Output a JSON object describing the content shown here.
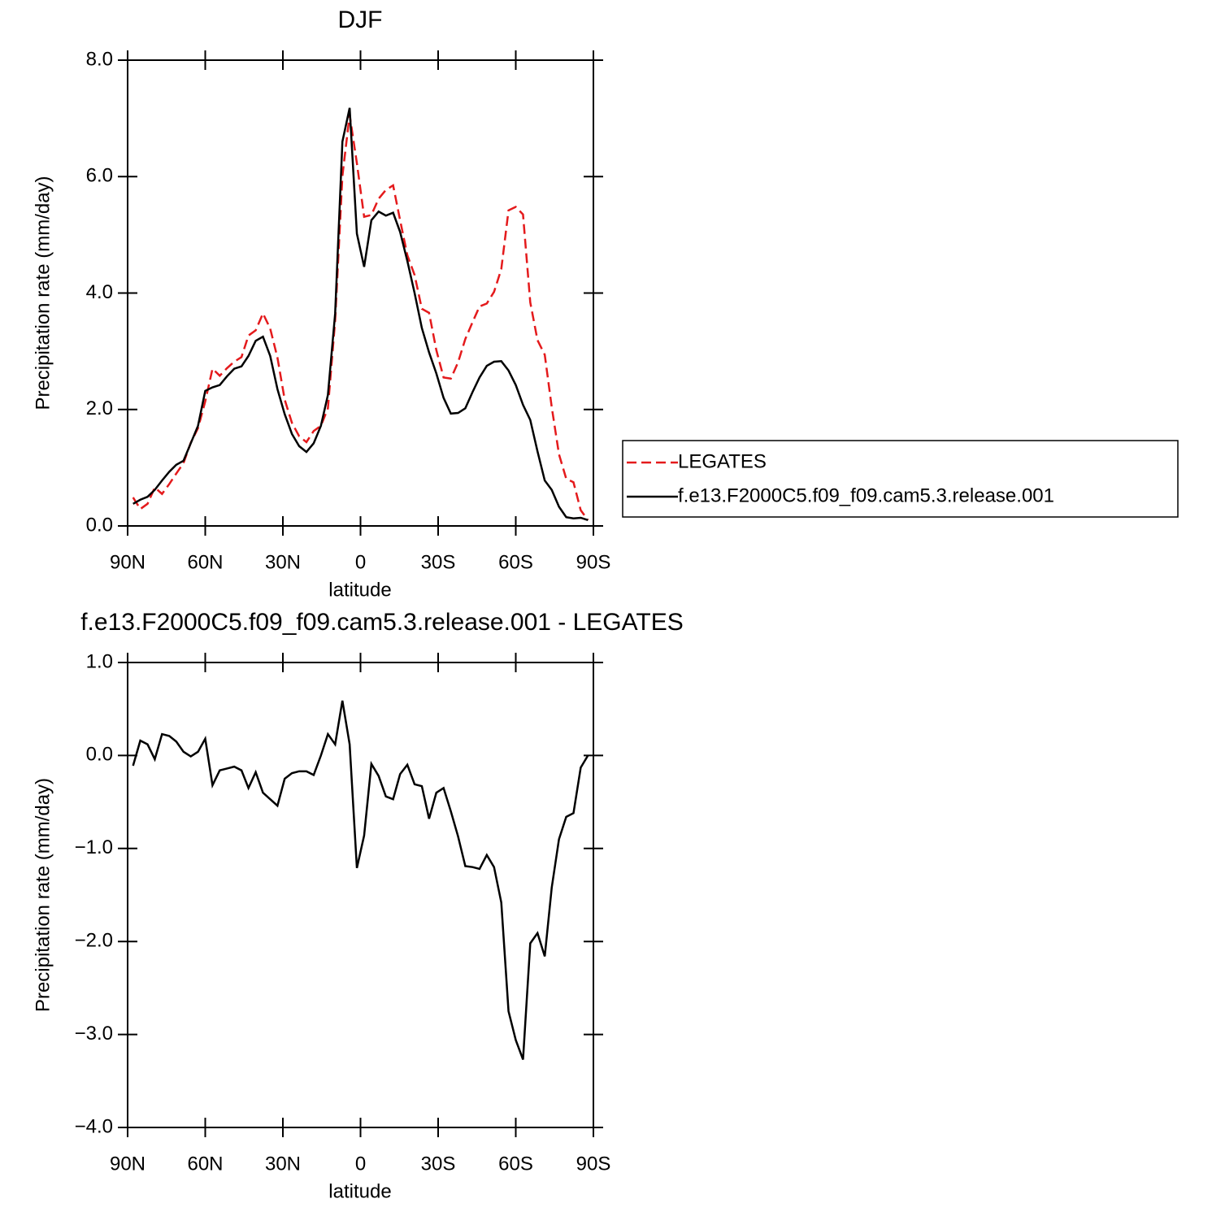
{
  "chart_data": [
    {
      "type": "line",
      "title": "DJF",
      "xlabel": "latitude",
      "ylabel": "Precipitation rate (mm/day)",
      "x": [
        87.9,
        85.1,
        82.3,
        79.5,
        76.7,
        73.9,
        71.2,
        68.4,
        65.6,
        62.8,
        60.0,
        57.2,
        54.4,
        51.6,
        48.8,
        46.0,
        43.3,
        40.5,
        37.7,
        34.9,
        32.1,
        29.3,
        26.5,
        23.7,
        20.9,
        18.1,
        15.3,
        12.6,
        9.8,
        7.0,
        4.2,
        1.4,
        -1.4,
        -4.2,
        -7.0,
        -9.8,
        -12.6,
        -15.3,
        -18.1,
        -20.9,
        -23.7,
        -26.5,
        -29.3,
        -32.1,
        -34.9,
        -37.7,
        -40.5,
        -43.3,
        -46.0,
        -48.8,
        -51.6,
        -54.4,
        -57.2,
        -60.0,
        -62.8,
        -65.6,
        -68.4,
        -71.2,
        -73.9,
        -76.7,
        -79.5,
        -82.3,
        -85.1,
        -87.9
      ],
      "series": [
        {
          "name": "LEGATES",
          "color": "#e41a1c",
          "line_style": "dashed",
          "values": [
            0.49,
            0.29,
            0.38,
            0.66,
            0.55,
            0.72,
            0.9,
            1.08,
            1.43,
            1.68,
            2.14,
            2.7,
            2.58,
            2.71,
            2.82,
            2.9,
            3.27,
            3.36,
            3.65,
            3.39,
            2.89,
            2.17,
            1.77,
            1.54,
            1.44,
            1.63,
            1.72,
            2.02,
            3.53,
            6.01,
            7.06,
            6.23,
            5.31,
            5.34,
            5.62,
            5.77,
            5.85,
            5.25,
            4.65,
            4.31,
            3.73,
            3.66,
            3.02,
            2.55,
            2.53,
            2.81,
            3.21,
            3.5,
            3.77,
            3.82,
            4.02,
            4.41,
            5.42,
            5.48,
            5.35,
            3.84,
            3.19,
            2.94,
            2.04,
            1.23,
            0.81,
            0.75,
            0.27,
            0.1
          ]
        },
        {
          "name": "f.e13.F2000C5.f09_f09.cam5.3.release.001",
          "color": "#000000",
          "line_style": "solid",
          "values": [
            0.38,
            0.45,
            0.5,
            0.62,
            0.78,
            0.93,
            1.05,
            1.12,
            1.42,
            1.72,
            2.32,
            2.38,
            2.42,
            2.57,
            2.7,
            2.74,
            2.92,
            3.18,
            3.25,
            2.92,
            2.35,
            1.92,
            1.58,
            1.37,
            1.27,
            1.42,
            1.72,
            2.25,
            3.65,
            6.6,
            7.18,
            5.02,
            4.45,
            5.25,
            5.4,
            5.33,
            5.38,
            5.05,
            4.55,
            4.0,
            3.4,
            2.98,
            2.62,
            2.2,
            1.93,
            1.94,
            2.02,
            2.3,
            2.55,
            2.75,
            2.82,
            2.83,
            2.67,
            2.42,
            2.08,
            1.82,
            1.28,
            0.78,
            0.62,
            0.33,
            0.15,
            0.13,
            0.14,
            0.1
          ]
        }
      ],
      "xlim": [
        90,
        -90
      ],
      "xticks": [
        {
          "value": 90,
          "label": "90N"
        },
        {
          "value": 60,
          "label": "60N"
        },
        {
          "value": 30,
          "label": "30N"
        },
        0,
        {
          "value": -30,
          "label": "30S"
        },
        {
          "value": -60,
          "label": "60S"
        },
        {
          "value": -90,
          "label": "90S"
        }
      ],
      "ylim": [
        0,
        8
      ],
      "yticks": [
        {
          "value": 0,
          "label": "0.0"
        },
        {
          "value": 2,
          "label": "2.0"
        },
        {
          "value": 4,
          "label": "4.0"
        },
        {
          "value": 6,
          "label": "6.0"
        },
        {
          "value": 8,
          "label": "8.0"
        }
      ],
      "legend": "right"
    },
    {
      "type": "line",
      "title": "f.e13.F2000C5.f09_f09.cam5.3.release.001 - LEGATES",
      "xlabel": "latitude",
      "ylabel": "Precipitation rate (mm/day)",
      "x": [
        87.9,
        85.1,
        82.3,
        79.5,
        76.7,
        73.9,
        71.2,
        68.4,
        65.6,
        62.8,
        60.0,
        57.2,
        54.4,
        51.6,
        48.8,
        46.0,
        43.3,
        40.5,
        37.7,
        34.9,
        32.1,
        29.3,
        26.5,
        23.7,
        20.9,
        18.1,
        15.3,
        12.6,
        9.8,
        7.0,
        4.2,
        1.4,
        -1.4,
        -4.2,
        -7.0,
        -9.8,
        -12.6,
        -15.3,
        -18.1,
        -20.9,
        -23.7,
        -26.5,
        -29.3,
        -32.1,
        -34.9,
        -37.7,
        -40.5,
        -43.3,
        -46.0,
        -48.8,
        -51.6,
        -54.4,
        -57.2,
        -60.0,
        -62.8,
        -65.6,
        -68.4,
        -71.2,
        -73.9,
        -76.7,
        -79.5,
        -82.3,
        -85.1,
        -87.9
      ],
      "color": "#000000",
      "values": [
        -0.11,
        0.16,
        0.12,
        -0.04,
        0.23,
        0.21,
        0.15,
        0.04,
        -0.01,
        0.04,
        0.18,
        -0.32,
        -0.16,
        -0.14,
        -0.12,
        -0.16,
        -0.35,
        -0.18,
        -0.4,
        -0.47,
        -0.54,
        -0.25,
        -0.19,
        -0.17,
        -0.17,
        -0.21,
        0.0,
        0.23,
        0.12,
        0.59,
        0.12,
        -1.21,
        -0.86,
        -0.09,
        -0.22,
        -0.44,
        -0.47,
        -0.2,
        -0.1,
        -0.31,
        -0.33,
        -0.68,
        -0.4,
        -0.35,
        -0.6,
        -0.87,
        -1.19,
        -1.2,
        -1.22,
        -1.07,
        -1.2,
        -1.58,
        -2.75,
        -3.06,
        -3.27,
        -2.02,
        -1.91,
        -2.16,
        -1.42,
        -0.9,
        -0.66,
        -0.62,
        -0.13,
        0.0
      ],
      "xlim": [
        90,
        -90
      ],
      "xticks": [
        {
          "value": 90,
          "label": "90N"
        },
        {
          "value": 60,
          "label": "60N"
        },
        {
          "value": 30,
          "label": "30N"
        },
        0,
        {
          "value": -30,
          "label": "30S"
        },
        {
          "value": -60,
          "label": "60S"
        },
        {
          "value": -90,
          "label": "90S"
        }
      ],
      "ylim": [
        -4,
        1
      ],
      "yticks": [
        {
          "value": -4,
          "label": "−4.0"
        },
        {
          "value": -3,
          "label": "−3.0"
        },
        {
          "value": -2,
          "label": "−2.0"
        },
        {
          "value": -1,
          "label": "−1.0"
        },
        {
          "value": 0,
          "label": "0.0"
        },
        {
          "value": 1,
          "label": "1.0"
        }
      ]
    }
  ]
}
